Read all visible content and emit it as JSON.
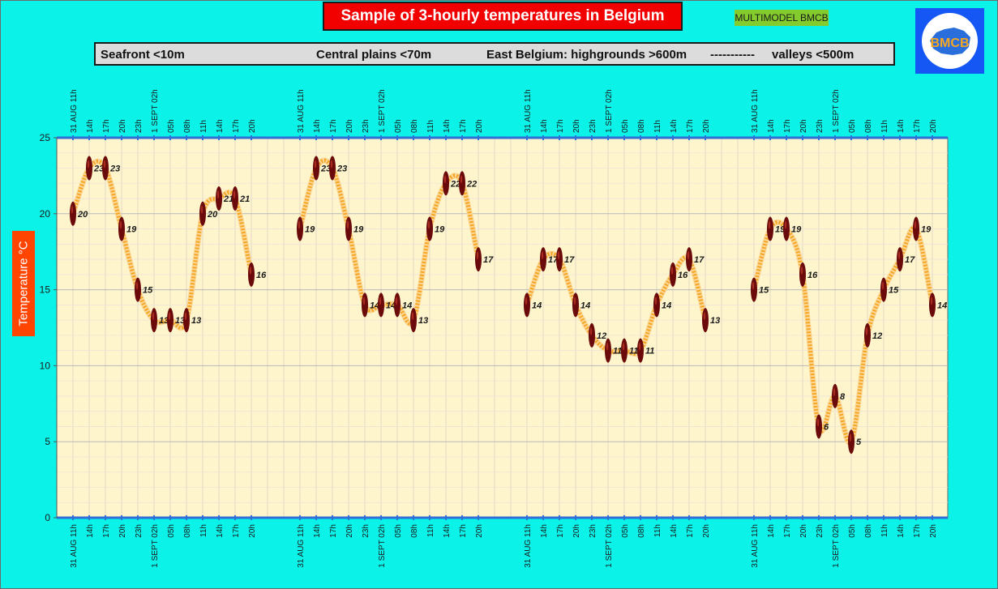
{
  "title": "Sample of 3-hourly temperatures in Belgium",
  "model_badge": "MULTIMODEL BMCB",
  "logo_text": "BMCB",
  "zones": [
    {
      "label": "Seafront <10m"
    },
    {
      "label": "Central plains <70m"
    },
    {
      "label": "East Belgium: highgrounds >600m"
    },
    {
      "label": "-----------"
    },
    {
      "label": "valleys <500m"
    }
  ],
  "chart_data": {
    "type": "line",
    "title": "Sample of 3-hourly temperatures in Belgium",
    "ylabel": "Temperature   °C",
    "ylim": [
      0,
      25
    ],
    "yticks": [
      0,
      5,
      10,
      15,
      20,
      25
    ],
    "grid": true,
    "x_tick_labels": [
      "31 AUG  11h",
      "14h",
      "17h",
      "20h",
      "23h",
      "1 SEPT 02h",
      "05h",
      "08h",
      "11h",
      "14h",
      "17h",
      "20h"
    ],
    "series": [
      {
        "values": [
          20,
          23,
          23,
          19,
          15,
          13,
          13,
          13,
          20,
          21,
          21,
          16
        ]
      },
      {
        "values": [
          19,
          23,
          23,
          19,
          14,
          14,
          14,
          13,
          19,
          22,
          22,
          17
        ]
      },
      {
        "values": [
          14,
          17,
          17,
          14,
          12,
          11,
          11,
          11,
          14,
          16,
          17,
          13
        ]
      },
      {
        "values": [
          15,
          19,
          19,
          16,
          6,
          8,
          5,
          12,
          15,
          17,
          19,
          14
        ]
      }
    ],
    "colors": {
      "line": "#f5a623",
      "marker": "#6b0a0a",
      "plot_bg": "#fff5cc",
      "axis": "#2f6fd6"
    }
  }
}
